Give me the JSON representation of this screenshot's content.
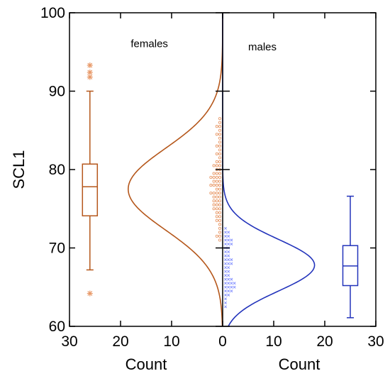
{
  "chart_data": {
    "type": "scatter",
    "title": "",
    "ylabel": "SCL1",
    "ylim": [
      60,
      100
    ],
    "yticks": [
      60,
      70,
      80,
      90,
      100
    ],
    "left_panel": {
      "xlabel": "Count",
      "xlim": [
        30,
        0
      ],
      "xticks": [
        30,
        20,
        10,
        0
      ]
    },
    "right_panel": {
      "xlabel": "Count",
      "xlim": [
        0,
        30
      ],
      "xticks": [
        0,
        10,
        20,
        30
      ]
    },
    "colors": {
      "females": "#b5571b",
      "males": "#2233bb",
      "females_points": "#e89a6a",
      "males_points": "#7f8cff"
    },
    "series": [
      {
        "name": "females",
        "side": "left",
        "density": {
          "mean": 77.5,
          "sd": 5.2,
          "peak_count": 18.5
        },
        "boxplot": {
          "x_position": 26,
          "whisker_low": 67.2,
          "q1": 74.1,
          "median": 77.8,
          "q3": 80.7,
          "whisker_high": 90.0,
          "outliers": [
            64.2,
            91.8,
            92.4,
            93.3
          ]
        },
        "points": [
          [
            1,
            86.5
          ],
          [
            1,
            86.0
          ],
          [
            2,
            85.5
          ],
          [
            1,
            85.0
          ],
          [
            2,
            84.5
          ],
          [
            1,
            84.0
          ],
          [
            1,
            83.5
          ],
          [
            2,
            83.0
          ],
          [
            1,
            82.5
          ],
          [
            2,
            82.0
          ],
          [
            1,
            81.5
          ],
          [
            2,
            81.0
          ],
          [
            3,
            80.5
          ],
          [
            2,
            80.0
          ],
          [
            3,
            79.5
          ],
          [
            4,
            79.0
          ],
          [
            3,
            78.5
          ],
          [
            4,
            78.0
          ],
          [
            2,
            77.5
          ],
          [
            4,
            77.0
          ],
          [
            3,
            76.5
          ],
          [
            3,
            76.0
          ],
          [
            3,
            75.5
          ],
          [
            3,
            75.0
          ],
          [
            2,
            74.5
          ],
          [
            2,
            74.0
          ],
          [
            2,
            73.5
          ],
          [
            1,
            73.0
          ],
          [
            1,
            72.5
          ],
          [
            1,
            72.0
          ],
          [
            2,
            71.5
          ],
          [
            1,
            71.0
          ]
        ]
      },
      {
        "name": "males",
        "side": "right",
        "density": {
          "mean": 67.8,
          "sd": 3.3,
          "peak_count": 18.0
        },
        "boxplot": {
          "x_position": 25,
          "whisker_low": 61.1,
          "q1": 65.2,
          "median": 67.7,
          "q3": 70.3,
          "whisker_high": 76.6,
          "outliers": []
        },
        "points": [
          [
            1,
            72.5
          ],
          [
            2,
            72.0
          ],
          [
            2,
            71.5
          ],
          [
            3,
            71.0
          ],
          [
            3,
            70.5
          ],
          [
            2,
            70.0
          ],
          [
            2,
            69.5
          ],
          [
            2,
            69.0
          ],
          [
            3,
            68.5
          ],
          [
            3,
            68.0
          ],
          [
            2,
            67.5
          ],
          [
            2,
            67.0
          ],
          [
            2,
            66.5
          ],
          [
            3,
            66.0
          ],
          [
            4,
            65.5
          ],
          [
            4,
            65.0
          ],
          [
            3,
            64.5
          ],
          [
            2,
            64.0
          ],
          [
            1,
            63.5
          ],
          [
            1,
            63.0
          ],
          [
            1,
            62.5
          ]
        ]
      }
    ],
    "annotations": [
      {
        "text": "females",
        "panel": "left",
        "x": 18,
        "y": 95.6
      },
      {
        "text": "males",
        "panel": "right",
        "x": 5,
        "y": 95.2
      }
    ]
  }
}
